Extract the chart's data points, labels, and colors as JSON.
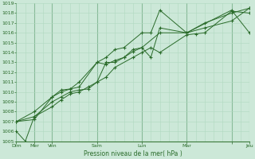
{
  "xlabel": "Pression niveau de la mer( hPa )",
  "ylim": [
    1005,
    1019
  ],
  "yticks": [
    1005,
    1006,
    1007,
    1008,
    1009,
    1010,
    1011,
    1012,
    1013,
    1014,
    1015,
    1016,
    1017,
    1018,
    1019
  ],
  "bg_color": "#cce8d8",
  "grid_color_minor": "#b0d8c0",
  "grid_color_major": "#88bb99",
  "line_color": "#2a6b2a",
  "n_cols": 26,
  "day_positions": [
    0,
    2,
    4,
    9,
    14,
    19,
    24,
    26
  ],
  "day_labels": [
    "Dim",
    "Mer",
    "Ven",
    "Sam",
    "Lun",
    "Mar",
    "",
    "Jeu"
  ],
  "series": [
    [
      [
        0,
        1007.0
      ],
      [
        2,
        1007.5
      ],
      [
        4,
        1008.5
      ],
      [
        5,
        1009.2
      ],
      [
        6,
        1009.8
      ],
      [
        7,
        1010.0
      ],
      [
        8,
        1010.5
      ],
      [
        9,
        1011.0
      ],
      [
        10,
        1011.5
      ],
      [
        11,
        1012.5
      ],
      [
        13,
        1013.5
      ],
      [
        14,
        1014.0
      ],
      [
        15,
        1014.5
      ],
      [
        16,
        1014.0
      ],
      [
        19,
        1015.8
      ],
      [
        20,
        1015.9
      ],
      [
        21,
        1016.0
      ],
      [
        24,
        1018.2
      ],
      [
        26,
        1018.0
      ]
    ],
    [
      [
        0,
        1006.0
      ],
      [
        1,
        1005.0
      ],
      [
        2,
        1007.5
      ],
      [
        4,
        1009.0
      ],
      [
        5,
        1009.5
      ],
      [
        6,
        1010.0
      ],
      [
        7,
        1010.2
      ],
      [
        8,
        1010.3
      ],
      [
        9,
        1011.0
      ],
      [
        10,
        1013.0
      ],
      [
        11,
        1013.0
      ],
      [
        12,
        1013.5
      ],
      [
        13,
        1014.3
      ],
      [
        14,
        1014.5
      ],
      [
        16,
        1016.0
      ],
      [
        19,
        1016.0
      ],
      [
        24,
        1018.3
      ],
      [
        26,
        1016.0
      ]
    ],
    [
      [
        0,
        1007.0
      ],
      [
        2,
        1008.0
      ],
      [
        4,
        1009.5
      ],
      [
        5,
        1010.0
      ],
      [
        6,
        1010.3
      ],
      [
        7,
        1010.5
      ],
      [
        9,
        1013.0
      ],
      [
        10,
        1012.8
      ],
      [
        11,
        1013.2
      ],
      [
        12,
        1013.5
      ],
      [
        13,
        1014.1
      ],
      [
        14,
        1014.5
      ],
      [
        15,
        1013.5
      ],
      [
        16,
        1016.5
      ],
      [
        19,
        1016.0
      ],
      [
        21,
        1016.5
      ],
      [
        24,
        1017.2
      ],
      [
        26,
        1018.5
      ]
    ],
    [
      [
        0,
        1007.0
      ],
      [
        2,
        1007.2
      ],
      [
        4,
        1009.5
      ],
      [
        5,
        1010.2
      ],
      [
        6,
        1010.3
      ],
      [
        7,
        1011.0
      ],
      [
        9,
        1013.0
      ],
      [
        10,
        1013.5
      ],
      [
        11,
        1014.3
      ],
      [
        12,
        1014.5
      ],
      [
        14,
        1016.0
      ],
      [
        15,
        1016.0
      ],
      [
        16,
        1018.3
      ],
      [
        19,
        1016.0
      ],
      [
        21,
        1017.0
      ],
      [
        24,
        1018.0
      ],
      [
        26,
        1018.5
      ]
    ]
  ]
}
